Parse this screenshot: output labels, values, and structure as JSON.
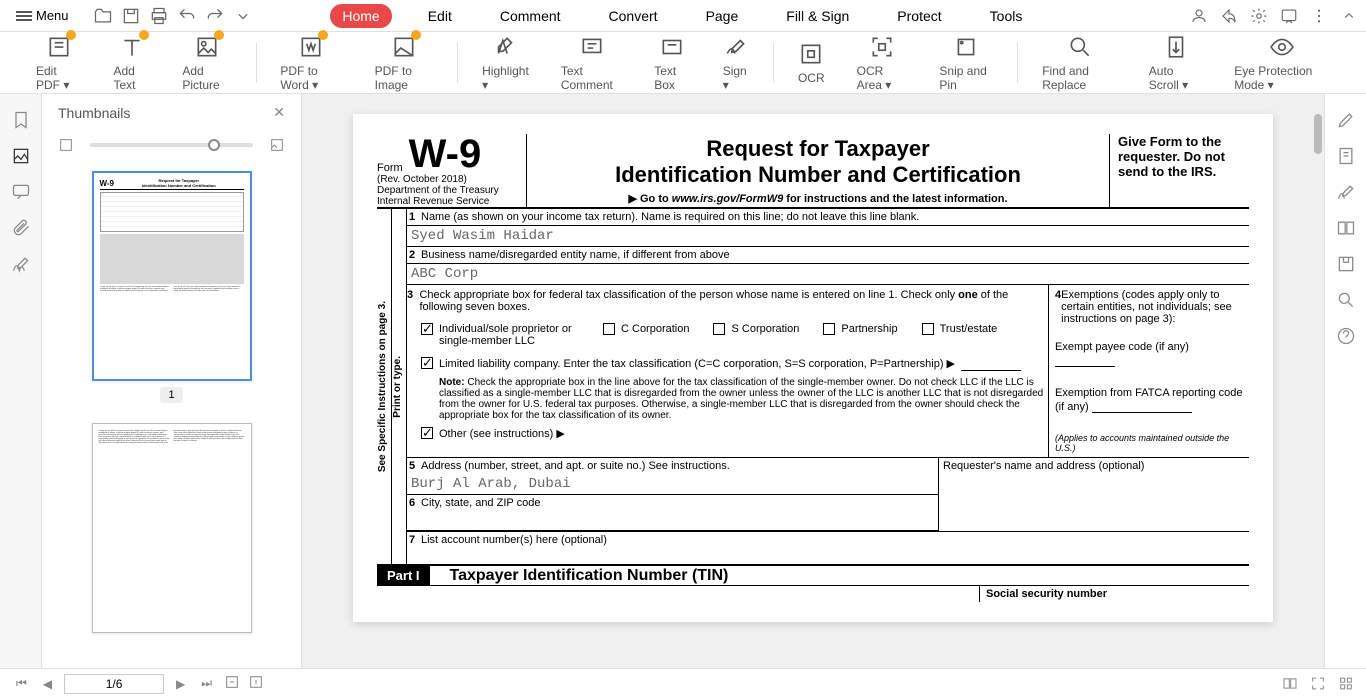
{
  "menu": {
    "label": "Menu"
  },
  "topTabs": [
    "Home",
    "Edit",
    "Comment",
    "Convert",
    "Page",
    "Fill & Sign",
    "Protect",
    "Tools"
  ],
  "activeTab": 0,
  "ribbon": [
    {
      "label": "Edit PDF",
      "icon": "edit-pdf",
      "badge": true,
      "dropdown": true
    },
    {
      "label": "Add Text",
      "icon": "add-text",
      "badge": true
    },
    {
      "label": "Add Picture",
      "icon": "add-picture",
      "badge": true
    },
    {
      "sep": true
    },
    {
      "label": "PDF to Word",
      "icon": "pdf-word",
      "badge": true,
      "dropdown": true
    },
    {
      "label": "PDF to Image",
      "icon": "pdf-image",
      "badge": true
    },
    {
      "sep": true
    },
    {
      "label": "Highlight",
      "icon": "highlight",
      "dropdown": true
    },
    {
      "label": "Text Comment",
      "icon": "text-comment"
    },
    {
      "label": "Text Box",
      "icon": "text-box"
    },
    {
      "label": "Sign",
      "icon": "sign",
      "dropdown": true
    },
    {
      "sep": true
    },
    {
      "label": "OCR",
      "icon": "ocr"
    },
    {
      "label": "OCR Area",
      "icon": "ocr-area",
      "dropdown": true
    },
    {
      "label": "Snip and Pin",
      "icon": "snip"
    },
    {
      "sep": true
    },
    {
      "label": "Find and Replace",
      "icon": "find"
    },
    {
      "label": "Auto Scroll",
      "icon": "auto-scroll",
      "dropdown": true
    },
    {
      "label": "Eye Protection Mode",
      "icon": "eye",
      "dropdown": true
    }
  ],
  "thumbnails": {
    "title": "Thumbnails",
    "pageCount": 2,
    "activePage": 1
  },
  "pageIndicator": "1/6",
  "form": {
    "formWord": "Form",
    "code": "W-9",
    "rev": "(Rev. October 2018)",
    "dept": "Department of the Treasury",
    "irs": "Internal Revenue Service",
    "title1": "Request for Taxpayer",
    "title2": "Identification Number and Certification",
    "gotoPrefix": "▶ Go to ",
    "gotoUrl": "www.irs.gov/FormW9",
    "gotoSuffix": " for instructions and the latest information.",
    "giveForm": "Give Form to the requester. Do not send to the IRS.",
    "sideText1": "Print or type.",
    "sideText2": "See Specific Instructions on page 3.",
    "line1": {
      "num": "1",
      "label": "Name (as shown on your income tax return). Name is required on this line; do not leave this line blank.",
      "value": "Syed Wasim Haidar"
    },
    "line2": {
      "num": "2",
      "label": "Business name/disregarded entity name, if different from above",
      "value": "ABC Corp"
    },
    "line3": {
      "num": "3",
      "labelA": "Check appropriate box for federal tax classification of the person whose name is entered on line 1. Check only ",
      "labelBold": "one",
      "labelB": " of the following seven boxes.",
      "options": [
        {
          "label": "Individual/sole proprietor or single-member LLC",
          "checked": true
        },
        {
          "label": "C Corporation",
          "checked": false
        },
        {
          "label": "S Corporation",
          "checked": false
        },
        {
          "label": "Partnership",
          "checked": false
        },
        {
          "label": "Trust/estate",
          "checked": false
        }
      ],
      "llc": {
        "label": "Limited liability company. Enter the tax classification (C=C corporation, S=S corporation, P=Partnership) ▶",
        "checked": true
      },
      "noteBold": "Note: ",
      "note": "Check the appropriate box in the line above for the tax classification of the single-member owner. Do not check LLC if the LLC is classified as a single-member LLC that is disregarded from the owner unless the owner of the LLC is another LLC that is not disregarded from the owner for U.S. federal tax purposes. Otherwise, a single-member LLC that is disregarded from the owner should check the appropriate box for the tax classification of its owner.",
      "other": {
        "label": "Other (see instructions) ▶",
        "checked": true
      }
    },
    "line4": {
      "num": "4",
      "label": "Exemptions (codes apply only to certain entities, not individuals; see instructions on page 3):",
      "exempt": "Exempt payee code (if any)",
      "fatca": "Exemption from FATCA reporting code (if any)",
      "applies": "(Applies to accounts maintained outside the U.S.)"
    },
    "line5": {
      "num": "5",
      "label": "Address (number, street, and apt. or suite no.) See instructions.",
      "value": "Burj Al Arab, Dubai"
    },
    "requester": "Requester's name and address (optional)",
    "line6": {
      "num": "6",
      "label": "City, state, and ZIP code"
    },
    "line7": {
      "num": "7",
      "label": "List account number(s) here (optional)"
    },
    "partI": {
      "label": "Part I",
      "title": "Taxpayer Identification Number (TIN)"
    },
    "ssn": "Social security number"
  }
}
